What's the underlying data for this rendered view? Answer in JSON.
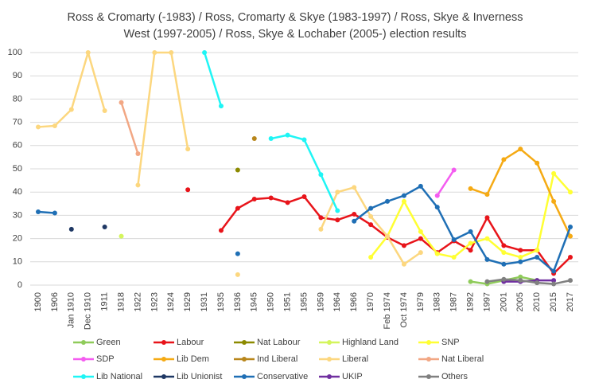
{
  "chart_data": {
    "type": "line",
    "title_lines": [
      "Ross & Cromarty (-1983) / Ross, Cromarty & Skye (1983-1997) / Ross, Skye & Inverness",
      "West (1997-2005) / Ross, Skye & Lochaber (2005-) election results"
    ],
    "categories": [
      "1900",
      "1906",
      "Jan 1910",
      "Dec 1910",
      "1911",
      "1918",
      "1922",
      "1923",
      "1924",
      "1929",
      "1931",
      "1935",
      "1936",
      "1945",
      "1950",
      "1951",
      "1955",
      "1959",
      "1964",
      "1966",
      "1970",
      "Feb 1974",
      "Oct 1974",
      "1979",
      "1983",
      "1987",
      "1992",
      "1997",
      "2001",
      "2005",
      "2010",
      "2015",
      "2017"
    ],
    "ylim": [
      0,
      100
    ],
    "yticks": [
      0,
      10,
      20,
      30,
      40,
      50,
      60,
      70,
      80,
      90,
      100
    ],
    "grid": true,
    "series": [
      {
        "name": "Green",
        "color": "#8fcb5a",
        "values": [
          null,
          null,
          null,
          null,
          null,
          null,
          null,
          null,
          null,
          null,
          null,
          null,
          null,
          null,
          null,
          null,
          null,
          null,
          null,
          null,
          null,
          null,
          null,
          null,
          null,
          null,
          1.5,
          0.5,
          2,
          3.5,
          2,
          null,
          null
        ]
      },
      {
        "name": "Labour",
        "color": "#e8141a",
        "values": [
          null,
          null,
          null,
          null,
          null,
          null,
          null,
          null,
          null,
          41,
          null,
          23.5,
          33,
          37,
          37.5,
          35.5,
          38,
          29,
          28,
          30.5,
          26,
          20.5,
          17,
          20,
          14,
          19,
          15,
          29,
          17,
          15,
          15,
          5,
          12
        ]
      },
      {
        "name": "Nat Labour",
        "color": "#8c8a00",
        "values": [
          null,
          null,
          null,
          null,
          null,
          null,
          null,
          null,
          null,
          null,
          null,
          null,
          49.5,
          null,
          null,
          null,
          null,
          null,
          null,
          null,
          null,
          null,
          null,
          null,
          null,
          null,
          null,
          null,
          null,
          null,
          null,
          null,
          null
        ]
      },
      {
        "name": "Highland Land",
        "color": "#d4f55c",
        "values": [
          null,
          null,
          null,
          null,
          null,
          21,
          null,
          null,
          null,
          null,
          null,
          null,
          null,
          null,
          null,
          null,
          null,
          null,
          null,
          null,
          null,
          null,
          null,
          null,
          null,
          null,
          null,
          null,
          null,
          null,
          null,
          null,
          null
        ]
      },
      {
        "name": "SNP",
        "color": "#ffff33",
        "values": [
          null,
          null,
          null,
          null,
          null,
          null,
          null,
          null,
          null,
          null,
          null,
          null,
          null,
          null,
          null,
          null,
          null,
          null,
          null,
          null,
          12,
          21,
          36,
          23,
          13.5,
          12,
          18,
          20,
          14,
          12,
          15,
          48,
          40
        ]
      },
      {
        "name": "SDP",
        "color": "#f45cf0",
        "values": [
          null,
          null,
          null,
          null,
          null,
          null,
          null,
          null,
          null,
          null,
          null,
          null,
          null,
          null,
          null,
          null,
          null,
          null,
          null,
          null,
          null,
          null,
          null,
          null,
          38.5,
          49.5,
          null,
          null,
          null,
          null,
          null,
          null,
          null
        ]
      },
      {
        "name": "Lib Dem",
        "color": "#f5aa14",
        "values": [
          null,
          null,
          null,
          null,
          null,
          null,
          null,
          null,
          null,
          null,
          null,
          null,
          null,
          null,
          null,
          null,
          null,
          null,
          null,
          null,
          null,
          null,
          null,
          null,
          null,
          null,
          41.5,
          39,
          54,
          58.5,
          52.5,
          36,
          21
        ]
      },
      {
        "name": "Ind Liberal",
        "color": "#b8861b",
        "values": [
          null,
          null,
          null,
          null,
          null,
          null,
          null,
          null,
          null,
          null,
          null,
          null,
          null,
          63,
          null,
          null,
          null,
          null,
          null,
          null,
          null,
          null,
          null,
          null,
          null,
          null,
          null,
          null,
          null,
          null,
          null,
          null,
          null
        ]
      },
      {
        "name": "Liberal",
        "color": "#fcd77f",
        "values": [
          68,
          68.5,
          75.5,
          100,
          75,
          null,
          43,
          100,
          100,
          58.5,
          null,
          null,
          4.5,
          null,
          null,
          null,
          null,
          24,
          40,
          42,
          29.5,
          21,
          9,
          14,
          null,
          null,
          null,
          null,
          null,
          null,
          null,
          null,
          null
        ]
      },
      {
        "name": "Nat Liberal",
        "color": "#f2a784",
        "values": [
          null,
          null,
          null,
          null,
          null,
          78.5,
          56.5,
          null,
          null,
          null,
          null,
          null,
          null,
          null,
          null,
          null,
          null,
          null,
          null,
          null,
          null,
          null,
          null,
          null,
          null,
          null,
          null,
          null,
          null,
          null,
          null,
          null,
          null
        ]
      },
      {
        "name": "Lib National",
        "color": "#1ff5f5",
        "values": [
          null,
          null,
          null,
          null,
          null,
          null,
          null,
          null,
          null,
          null,
          100,
          77,
          null,
          null,
          63,
          64.5,
          62.5,
          47.5,
          32,
          null,
          null,
          null,
          null,
          null,
          null,
          null,
          null,
          null,
          null,
          null,
          null,
          null,
          null
        ]
      },
      {
        "name": "Lib Unionist",
        "color": "#1f3864",
        "values": [
          null,
          null,
          24,
          null,
          25,
          null,
          null,
          null,
          null,
          null,
          null,
          null,
          null,
          null,
          null,
          null,
          null,
          null,
          null,
          null,
          null,
          null,
          null,
          null,
          null,
          null,
          null,
          null,
          null,
          null,
          null,
          null,
          null
        ]
      },
      {
        "name": "Conservative",
        "color": "#1f6fb5",
        "values": [
          31.5,
          31,
          null,
          null,
          null,
          null,
          null,
          null,
          null,
          null,
          null,
          null,
          13.5,
          null,
          null,
          null,
          null,
          null,
          null,
          27.5,
          33,
          36,
          38.5,
          42.5,
          33.5,
          19.5,
          23,
          11,
          9,
          10,
          12,
          6,
          25
        ]
      },
      {
        "name": "UKIP",
        "color": "#7030a0",
        "values": [
          null,
          null,
          null,
          null,
          null,
          null,
          null,
          null,
          null,
          null,
          null,
          null,
          null,
          null,
          null,
          null,
          null,
          null,
          null,
          null,
          null,
          null,
          null,
          null,
          null,
          null,
          null,
          null,
          1.5,
          1.5,
          2,
          2,
          null
        ]
      },
      {
        "name": "Others",
        "color": "#808080",
        "values": [
          null,
          null,
          null,
          null,
          null,
          null,
          null,
          null,
          null,
          null,
          null,
          null,
          null,
          null,
          null,
          null,
          null,
          null,
          null,
          null,
          null,
          null,
          null,
          null,
          null,
          null,
          null,
          1.5,
          2.5,
          2,
          1,
          0.5,
          2
        ]
      }
    ]
  }
}
